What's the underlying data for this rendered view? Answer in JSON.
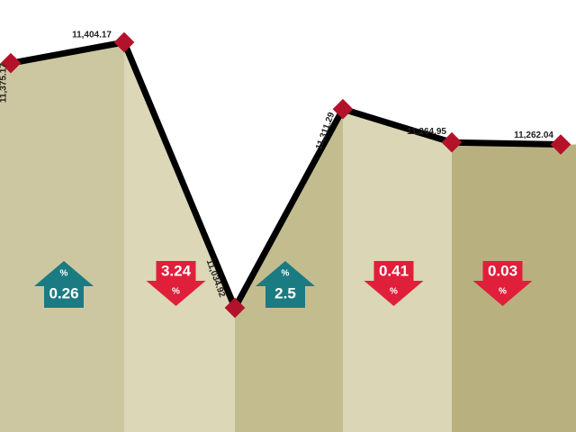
{
  "chart_data": {
    "type": "line",
    "values": [
      11375.17,
      11404.17,
      11034.92,
      11311.29,
      11264.95,
      11262.04
    ],
    "value_labels": [
      "11,375.17",
      "11,404.17",
      "11,034.92",
      "11,311.29",
      "11,264.95",
      "11,262.04"
    ],
    "color": "#000000",
    "marker_color": "#b3122a",
    "band_colors": [
      "#cdc7a1",
      "#dcd7b7",
      "#c3bc8f",
      "#dbd6b5",
      "#b8b17f"
    ],
    "unit": "%",
    "changes": [
      {
        "value": 0.26,
        "direction": "up"
      },
      {
        "value": 3.24,
        "direction": "down"
      },
      {
        "value": 2.5,
        "direction": "up"
      },
      {
        "value": 0.41,
        "direction": "down"
      },
      {
        "value": 0.03,
        "direction": "down"
      }
    ],
    "up_color": "#1b7b82",
    "down_color": "#e01f3b"
  }
}
